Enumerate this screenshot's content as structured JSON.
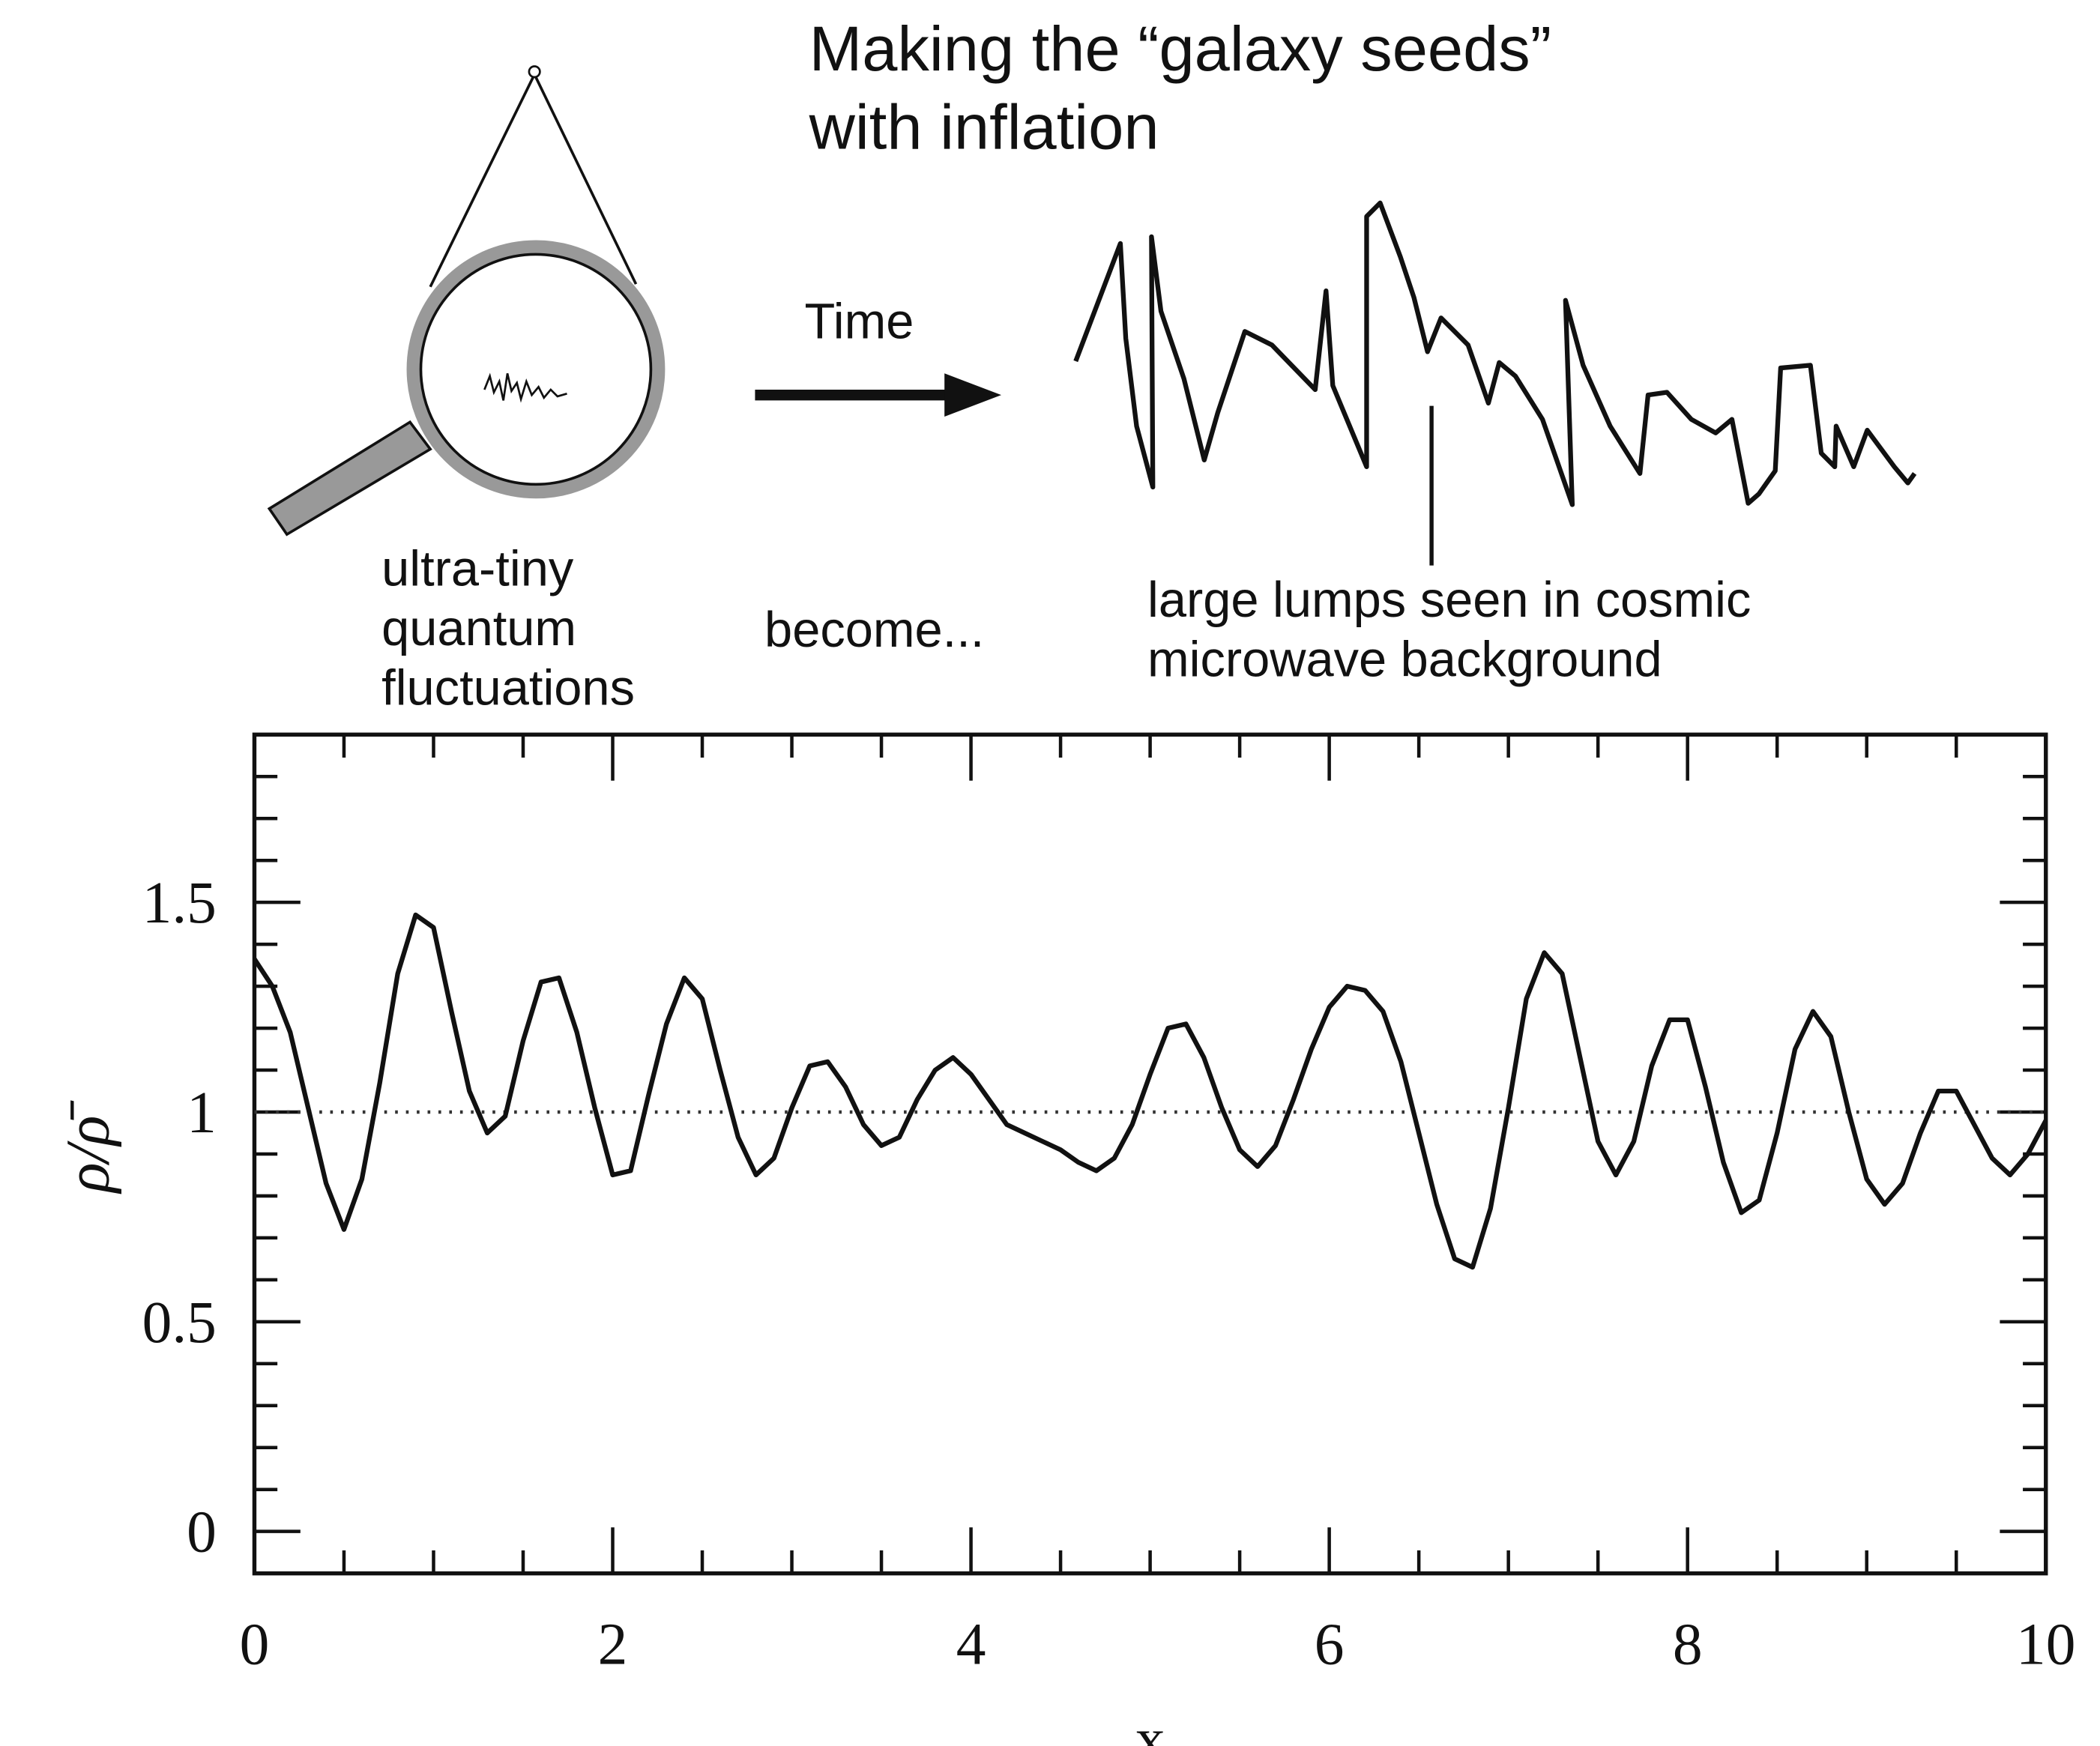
{
  "diagram": {
    "title": [
      "Making the “galaxy seeds”",
      "with inflation"
    ],
    "left_label": [
      "ultra-tiny",
      "quantum",
      "fluctuations"
    ],
    "arrow_label": "Time",
    "middle_label": "become...",
    "right_label": [
      "large lumps seen in cosmic",
      "microwave background"
    ]
  },
  "chart_data": {
    "type": "line",
    "x_label": "x",
    "y_label": "ρ/ρ̄",
    "x": [
      0,
      0.1,
      0.2,
      0.3,
      0.4,
      0.5,
      0.6,
      0.7,
      0.8,
      0.9,
      1,
      1.1,
      1.2,
      1.3,
      1.4,
      1.5,
      1.6,
      1.7,
      1.8,
      1.9,
      2,
      2.1,
      2.2,
      2.3,
      2.4,
      2.5,
      2.6,
      2.7,
      2.8,
      2.9,
      3,
      3.1,
      3.2,
      3.3,
      3.4,
      3.5,
      3.6,
      3.7,
      3.8,
      3.9,
      4,
      4.1,
      4.2,
      4.3,
      4.4,
      4.5,
      4.6,
      4.7,
      4.8,
      4.9,
      5,
      5.1,
      5.2,
      5.3,
      5.4,
      5.5,
      5.6,
      5.7,
      5.8,
      5.9,
      6,
      6.1,
      6.2,
      6.3,
      6.4,
      6.5,
      6.6,
      6.7,
      6.8,
      6.9,
      7,
      7.1,
      7.2,
      7.3,
      7.4,
      7.5,
      7.6,
      7.7,
      7.8,
      7.9,
      8,
      8.1,
      8.2,
      8.3,
      8.4,
      8.5,
      8.6,
      8.7,
      8.8,
      8.9,
      9,
      9.1,
      9.2,
      9.3,
      9.4,
      9.5,
      9.6,
      9.7,
      9.8,
      9.9,
      10
    ],
    "values": [
      1.365,
      1.3,
      1.19,
      1.01,
      0.83,
      0.72,
      0.84,
      1.07,
      1.33,
      1.47,
      1.44,
      1.24,
      1.05,
      0.95,
      0.99,
      1.17,
      1.31,
      1.32,
      1.19,
      1.01,
      0.85,
      0.86,
      1.04,
      1.21,
      1.32,
      1.27,
      1.1,
      0.94,
      0.85,
      0.89,
      1.01,
      1.11,
      1.12,
      1.06,
      0.97,
      0.92,
      0.94,
      1.03,
      1.1,
      1.13,
      1.09,
      1.03,
      0.97,
      0.95,
      0.93,
      0.91,
      0.88,
      0.86,
      0.89,
      0.97,
      1.09,
      1.2,
      1.21,
      1.13,
      1.01,
      0.91,
      0.87,
      0.92,
      1.03,
      1.15,
      1.25,
      1.3,
      1.29,
      1.24,
      1.12,
      0.95,
      0.78,
      0.65,
      0.63,
      0.77,
      1.01,
      1.27,
      1.38,
      1.33,
      1.13,
      0.93,
      0.85,
      0.93,
      1.11,
      1.22,
      1.22,
      1.06,
      0.88,
      0.76,
      0.79,
      0.95,
      1.15,
      1.24,
      1.18,
      1.0,
      0.84,
      0.78,
      0.83,
      0.95,
      1.05,
      1.05,
      0.97,
      0.89,
      0.85,
      0.9,
      0.98
    ],
    "color": "#111111",
    "reference_line": 1,
    "xlim": [
      0,
      10
    ],
    "ylim": [
      -0.1,
      1.9
    ],
    "xticks": [
      0,
      2,
      4,
      6,
      8,
      10
    ],
    "yticks": [
      0,
      0.5,
      1,
      1.5
    ],
    "xminorticks": [
      0.5,
      1,
      1.5,
      2.5,
      3,
      3.5,
      4.5,
      5,
      5.5,
      6.5,
      7,
      7.5,
      8.5,
      9,
      9.5
    ],
    "yminorticks": [
      0.1,
      0.2,
      0.3,
      0.4,
      0.6,
      0.7,
      0.8,
      0.9,
      1.1,
      1.2,
      1.3,
      1.4,
      1.6,
      1.7,
      1.8
    ]
  }
}
